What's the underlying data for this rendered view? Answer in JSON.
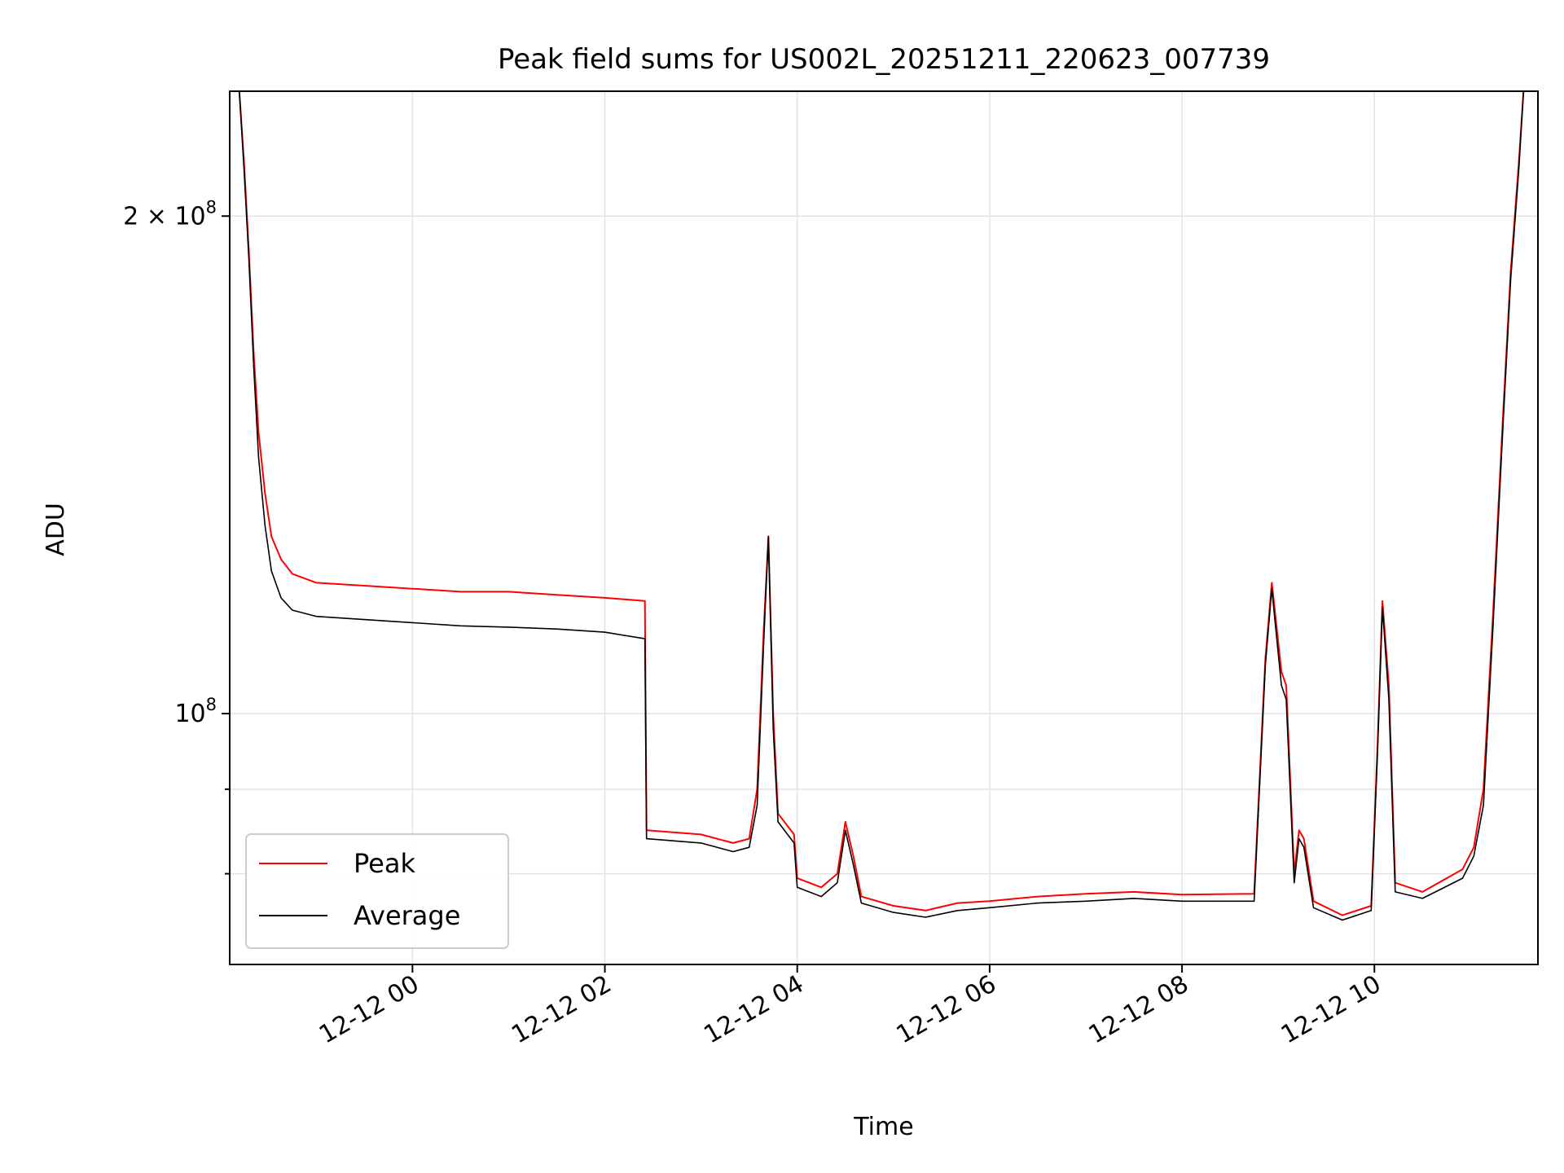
{
  "chart_data": {
    "type": "line",
    "title": "Peak field sums for US002L_20251211_220623_007739",
    "xlabel": "Time",
    "ylabel": "ADU",
    "yscale": "log",
    "grid": true,
    "legend_position": "lower-left",
    "x_ticks": [
      "12-12 00",
      "12-12 02",
      "12-12 04",
      "12-12 06",
      "12-12 08",
      "12-12 10"
    ],
    "y_ticks": [
      {
        "value": 100000000,
        "label_base": "10",
        "label_exp": "8",
        "label_coef": ""
      },
      {
        "value": 200000000,
        "label_base": "10",
        "label_exp": "8",
        "label_coef": "2 × "
      }
    ],
    "xlim": [
      "2025-12-11 22:06",
      "2025-12-12 11:42"
    ],
    "ylim": [
      70500000,
      238000000
    ],
    "colors": {
      "peak": "#ff0000",
      "average": "#000000"
    },
    "series": [
      {
        "name": "Peak",
        "key": "peak",
        "color": "#ff0000",
        "points": [
          [
            "2025-12-11 22:06",
            238000000
          ],
          [
            "2025-12-11 22:12",
            238000000
          ],
          [
            "2025-12-11 22:15",
            215000000
          ],
          [
            "2025-12-11 22:18",
            190000000
          ],
          [
            "2025-12-11 22:21",
            165000000
          ],
          [
            "2025-12-11 22:24",
            148000000
          ],
          [
            "2025-12-11 22:28",
            136000000
          ],
          [
            "2025-12-11 22:32",
            128000000
          ],
          [
            "2025-12-11 22:38",
            124000000
          ],
          [
            "2025-12-11 22:45",
            121500000
          ],
          [
            "2025-12-11 23:00",
            120000000
          ],
          [
            "2025-12-11 23:30",
            119500000
          ],
          [
            "2025-12-12 00:00",
            119000000
          ],
          [
            "2025-12-12 00:30",
            118500000
          ],
          [
            "2025-12-12 01:00",
            118500000
          ],
          [
            "2025-12-12 01:30",
            118000000
          ],
          [
            "2025-12-12 02:00",
            117500000
          ],
          [
            "2025-12-12 02:25",
            117000000
          ],
          [
            "2025-12-12 02:26",
            85000000
          ],
          [
            "2025-12-12 03:00",
            84500000
          ],
          [
            "2025-12-12 03:20",
            83500000
          ],
          [
            "2025-12-12 03:30",
            84000000
          ],
          [
            "2025-12-12 03:35",
            90000000
          ],
          [
            "2025-12-12 03:39",
            112000000
          ],
          [
            "2025-12-12 03:42",
            128000000
          ],
          [
            "2025-12-12 03:45",
            100000000
          ],
          [
            "2025-12-12 03:48",
            87000000
          ],
          [
            "2025-12-12 03:58",
            84500000
          ],
          [
            "2025-12-12 04:00",
            79500000
          ],
          [
            "2025-12-12 04:15",
            78500000
          ],
          [
            "2025-12-12 04:25",
            80000000
          ],
          [
            "2025-12-12 04:30",
            86000000
          ],
          [
            "2025-12-12 04:35",
            82000000
          ],
          [
            "2025-12-12 04:40",
            77500000
          ],
          [
            "2025-12-12 05:00",
            76500000
          ],
          [
            "2025-12-12 05:20",
            76000000
          ],
          [
            "2025-12-12 05:40",
            76800000
          ],
          [
            "2025-12-12 06:00",
            77000000
          ],
          [
            "2025-12-12 06:30",
            77500000
          ],
          [
            "2025-12-12 07:00",
            77800000
          ],
          [
            "2025-12-12 07:30",
            78000000
          ],
          [
            "2025-12-12 08:00",
            77700000
          ],
          [
            "2025-12-12 08:45",
            77800000
          ],
          [
            "2025-12-12 08:52",
            108000000
          ],
          [
            "2025-12-12 08:56",
            120000000
          ],
          [
            "2025-12-12 09:02",
            106000000
          ],
          [
            "2025-12-12 09:05",
            104000000
          ],
          [
            "2025-12-12 09:10",
            80000000
          ],
          [
            "2025-12-12 09:13",
            85000000
          ],
          [
            "2025-12-12 09:16",
            84000000
          ],
          [
            "2025-12-12 09:22",
            77000000
          ],
          [
            "2025-12-12 09:40",
            75500000
          ],
          [
            "2025-12-12 09:58",
            76500000
          ],
          [
            "2025-12-12 10:02",
            96000000
          ],
          [
            "2025-12-12 10:05",
            117000000
          ],
          [
            "2025-12-12 10:09",
            104000000
          ],
          [
            "2025-12-12 10:13",
            79000000
          ],
          [
            "2025-12-12 10:30",
            78000000
          ],
          [
            "2025-12-12 10:55",
            80500000
          ],
          [
            "2025-12-12 11:02",
            83000000
          ],
          [
            "2025-12-12 11:08",
            90000000
          ],
          [
            "2025-12-12 11:14",
            115000000
          ],
          [
            "2025-12-12 11:20",
            150000000
          ],
          [
            "2025-12-12 11:25",
            185000000
          ],
          [
            "2025-12-12 11:30",
            215000000
          ],
          [
            "2025-12-12 11:33",
            238000000
          ],
          [
            "2025-12-12 11:42",
            238000000
          ]
        ]
      },
      {
        "name": "Average",
        "key": "average",
        "color": "#000000",
        "points": [
          [
            "2025-12-11 22:06",
            238000000
          ],
          [
            "2025-12-11 22:12",
            238000000
          ],
          [
            "2025-12-11 22:15",
            213000000
          ],
          [
            "2025-12-11 22:18",
            188000000
          ],
          [
            "2025-12-11 22:21",
            162000000
          ],
          [
            "2025-12-11 22:24",
            143000000
          ],
          [
            "2025-12-11 22:28",
            130000000
          ],
          [
            "2025-12-11 22:32",
            122000000
          ],
          [
            "2025-12-11 22:38",
            117500000
          ],
          [
            "2025-12-11 22:45",
            115500000
          ],
          [
            "2025-12-11 23:00",
            114500000
          ],
          [
            "2025-12-11 23:30",
            114000000
          ],
          [
            "2025-12-12 00:00",
            113500000
          ],
          [
            "2025-12-12 00:30",
            113000000
          ],
          [
            "2025-12-12 01:00",
            112800000
          ],
          [
            "2025-12-12 01:30",
            112500000
          ],
          [
            "2025-12-12 02:00",
            112000000
          ],
          [
            "2025-12-12 02:25",
            111000000
          ],
          [
            "2025-12-12 02:26",
            84000000
          ],
          [
            "2025-12-12 03:00",
            83500000
          ],
          [
            "2025-12-12 03:20",
            82500000
          ],
          [
            "2025-12-12 03:30",
            83000000
          ],
          [
            "2025-12-12 03:35",
            88000000
          ],
          [
            "2025-12-12 03:39",
            110000000
          ],
          [
            "2025-12-12 03:42",
            128000000
          ],
          [
            "2025-12-12 03:45",
            98000000
          ],
          [
            "2025-12-12 03:48",
            86000000
          ],
          [
            "2025-12-12 03:58",
            83500000
          ],
          [
            "2025-12-12 04:00",
            78500000
          ],
          [
            "2025-12-12 04:15",
            77500000
          ],
          [
            "2025-12-12 04:25",
            79000000
          ],
          [
            "2025-12-12 04:30",
            85000000
          ],
          [
            "2025-12-12 04:35",
            81000000
          ],
          [
            "2025-12-12 04:40",
            76800000
          ],
          [
            "2025-12-12 05:00",
            75800000
          ],
          [
            "2025-12-12 05:20",
            75300000
          ],
          [
            "2025-12-12 05:40",
            76000000
          ],
          [
            "2025-12-12 06:00",
            76300000
          ],
          [
            "2025-12-12 06:30",
            76800000
          ],
          [
            "2025-12-12 07:00",
            77000000
          ],
          [
            "2025-12-12 07:30",
            77300000
          ],
          [
            "2025-12-12 08:00",
            77000000
          ],
          [
            "2025-12-12 08:45",
            77000000
          ],
          [
            "2025-12-12 08:52",
            107000000
          ],
          [
            "2025-12-12 08:56",
            119000000
          ],
          [
            "2025-12-12 09:02",
            104000000
          ],
          [
            "2025-12-12 09:05",
            102000000
          ],
          [
            "2025-12-12 09:10",
            79000000
          ],
          [
            "2025-12-12 09:13",
            84000000
          ],
          [
            "2025-12-12 09:16",
            83000000
          ],
          [
            "2025-12-12 09:22",
            76300000
          ],
          [
            "2025-12-12 09:40",
            75000000
          ],
          [
            "2025-12-12 09:58",
            76000000
          ],
          [
            "2025-12-12 10:02",
            95000000
          ],
          [
            "2025-12-12 10:05",
            116000000
          ],
          [
            "2025-12-12 10:09",
            102000000
          ],
          [
            "2025-12-12 10:13",
            78000000
          ],
          [
            "2025-12-12 10:30",
            77300000
          ],
          [
            "2025-12-12 10:55",
            79500000
          ],
          [
            "2025-12-12 11:02",
            82000000
          ],
          [
            "2025-12-12 11:08",
            88000000
          ],
          [
            "2025-12-12 11:14",
            113000000
          ],
          [
            "2025-12-12 11:20",
            148000000
          ],
          [
            "2025-12-12 11:25",
            183000000
          ],
          [
            "2025-12-12 11:30",
            213000000
          ],
          [
            "2025-12-12 11:33",
            238000000
          ],
          [
            "2025-12-12 11:42",
            238000000
          ]
        ]
      }
    ]
  }
}
